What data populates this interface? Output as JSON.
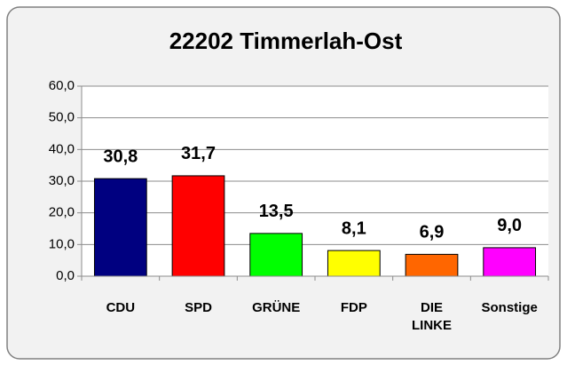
{
  "chart_data": {
    "type": "bar",
    "title": "22202 Timmerlah-Ost",
    "categories": [
      "CDU",
      "SPD",
      "GRÜNE",
      "FDP",
      "DIE LINKE",
      "Sonstige"
    ],
    "values": [
      30.8,
      31.7,
      13.5,
      8.1,
      6.9,
      9.0
    ],
    "value_labels": [
      "30,8",
      "31,7",
      "13,5",
      "8,1",
      "6,9",
      "9,0"
    ],
    "colors": [
      "#000080",
      "#ff0000",
      "#00ff00",
      "#ffff00",
      "#ff6600",
      "#ff00ff"
    ],
    "ylim": [
      0,
      60
    ],
    "yticks": [
      {
        "value": 0,
        "label": "0,0"
      },
      {
        "value": 10,
        "label": "10,0"
      },
      {
        "value": 20,
        "label": "20,0"
      },
      {
        "value": 30,
        "label": "30,0"
      },
      {
        "value": 40,
        "label": "40,0"
      },
      {
        "value": 50,
        "label": "50,0"
      },
      {
        "value": 60,
        "label": "60,0"
      }
    ],
    "grid": true
  }
}
